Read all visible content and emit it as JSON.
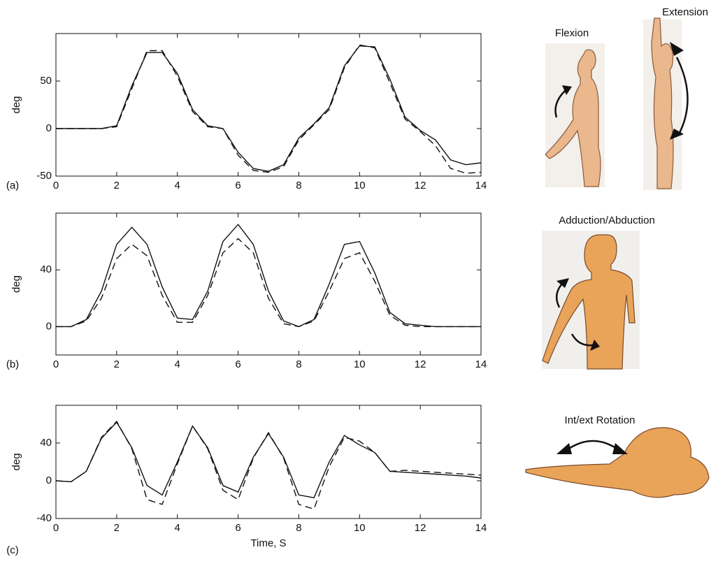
{
  "chart_data": [
    {
      "type": "line",
      "panel_label": "(a)",
      "y_label": "deg",
      "x": [
        0,
        0.5,
        1,
        1.5,
        2,
        2.5,
        3,
        3.5,
        4,
        4.5,
        5,
        5.5,
        6,
        6.5,
        7,
        7.5,
        8,
        8.5,
        9,
        9.5,
        10,
        10.5,
        11,
        11.5,
        12,
        12.5,
        13,
        13.5,
        14
      ],
      "series": [
        {
          "color": "#111111",
          "dash": false,
          "values": [
            0,
            0,
            0,
            0,
            3,
            45,
            80,
            80,
            58,
            20,
            3,
            0,
            -25,
            -42,
            -45,
            -38,
            -10,
            5,
            22,
            66,
            87,
            86,
            52,
            12,
            -2,
            -12,
            -33,
            -38,
            -36
          ]
        },
        {
          "color": "#111111",
          "dash": true,
          "values": [
            0,
            0,
            0,
            0,
            2,
            42,
            82,
            82,
            55,
            18,
            2,
            0,
            -28,
            -44,
            -46,
            -40,
            -12,
            4,
            20,
            64,
            88,
            85,
            48,
            10,
            -3,
            -18,
            -42,
            -47,
            -46
          ]
        }
      ],
      "xlim": [
        0,
        14
      ],
      "ylim": [
        -50,
        100
      ],
      "xticks": [
        0,
        2,
        4,
        6,
        8,
        10,
        12,
        14
      ],
      "yticks": [
        -50,
        0,
        50
      ]
    },
    {
      "type": "line",
      "panel_label": "(b)",
      "y_label": "deg",
      "x": [
        0,
        0.5,
        1,
        1.5,
        2,
        2.5,
        3,
        3.5,
        4,
        4.5,
        5,
        5.5,
        6,
        6.5,
        7,
        7.5,
        8,
        8.5,
        9,
        9.5,
        10,
        10.5,
        11,
        11.5,
        12,
        12.5,
        13,
        13.5,
        14
      ],
      "series": [
        {
          "color": "#111111",
          "dash": false,
          "values": [
            0,
            0,
            5,
            25,
            58,
            70,
            58,
            28,
            6,
            5,
            25,
            60,
            72,
            58,
            25,
            4,
            0,
            5,
            30,
            58,
            60,
            38,
            10,
            2,
            1,
            0,
            0,
            0,
            0
          ]
        },
        {
          "color": "#111111",
          "dash": true,
          "values": [
            0,
            0,
            4,
            20,
            48,
            58,
            50,
            22,
            3,
            3,
            22,
            52,
            62,
            52,
            20,
            2,
            0,
            4,
            25,
            48,
            52,
            32,
            8,
            1,
            0,
            0,
            0,
            0,
            0
          ]
        }
      ],
      "xlim": [
        0,
        14
      ],
      "ylim": [
        -20,
        80
      ],
      "xticks": [
        0,
        2,
        4,
        6,
        8,
        10,
        12,
        14
      ],
      "yticks": [
        0,
        40
      ]
    },
    {
      "type": "line",
      "panel_label": "(c)",
      "y_label": "deg",
      "x_label": "Time, S",
      "x": [
        0,
        0.5,
        1,
        1.5,
        2,
        2.5,
        3,
        3.5,
        4,
        4.5,
        5,
        5.5,
        6,
        6.5,
        7,
        7.5,
        8,
        8.5,
        9,
        9.5,
        10,
        10.5,
        11,
        11.5,
        12,
        12.5,
        13,
        13.5,
        14
      ],
      "series": [
        {
          "color": "#111111",
          "dash": false,
          "values": [
            0,
            -1,
            10,
            45,
            62,
            35,
            -5,
            -15,
            20,
            58,
            35,
            -5,
            -12,
            25,
            50,
            25,
            -15,
            -18,
            20,
            48,
            38,
            30,
            10,
            9,
            8,
            7,
            6,
            5,
            3
          ]
        },
        {
          "color": "#111111",
          "dash": true,
          "values": [
            0,
            -1,
            10,
            46,
            63,
            34,
            -20,
            -25,
            18,
            58,
            34,
            -10,
            -20,
            24,
            51,
            24,
            -25,
            -30,
            15,
            46,
            42,
            30,
            10,
            11,
            10,
            9,
            8,
            7,
            6
          ]
        }
      ],
      "xlim": [
        0,
        14
      ],
      "ylim": [
        -40,
        80
      ],
      "xticks": [
        0,
        2,
        4,
        6,
        8,
        10,
        12,
        14
      ],
      "yticks": [
        -40,
        0,
        40
      ]
    }
  ],
  "illustrations": {
    "labels": [
      "Flexion",
      "Extension",
      "Adduction/Abduction",
      "Int/ext Rotation"
    ]
  }
}
